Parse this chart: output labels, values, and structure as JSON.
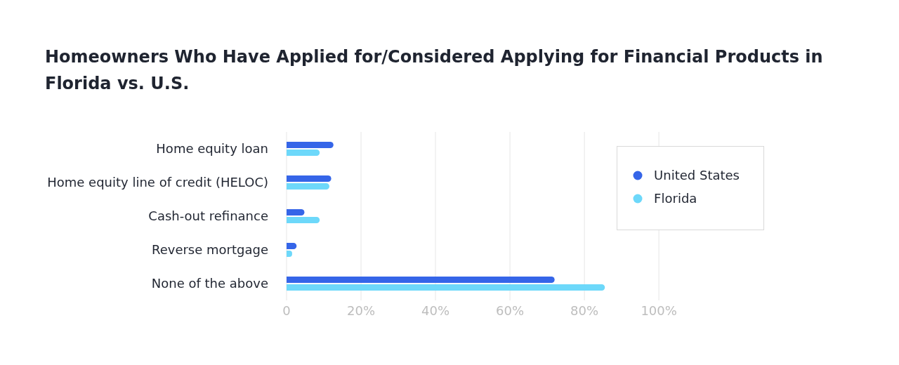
{
  "chart_data": {
    "type": "bar",
    "orientation": "horizontal",
    "title": "Homeowners Who Have Applied for/Considered Applying for Financial Products in Florida vs. U.S.",
    "categories": [
      "Home equity loan",
      "Home equity line of credit (HELOC)",
      "Cash-out refinance",
      "Reverse mortgage",
      "None of the above"
    ],
    "series": [
      {
        "name": "United States",
        "color": "#3565e8",
        "values": [
          12.6,
          12.0,
          4.8,
          2.7,
          72
        ]
      },
      {
        "name": "Florida",
        "color": "#6dd8fa",
        "values": [
          8.9,
          11.5,
          8.9,
          1.5,
          85.5
        ]
      }
    ],
    "xlim": [
      0,
      100
    ],
    "xticks": [
      0,
      {
        "value": 20,
        "label": "20%"
      },
      {
        "value": 40,
        "label": "40%"
      },
      {
        "value": 60,
        "label": "60%"
      },
      {
        "value": 80,
        "label": "80%"
      },
      {
        "value": 100,
        "label": "100%"
      }
    ],
    "grid": "x",
    "legend": "right"
  }
}
